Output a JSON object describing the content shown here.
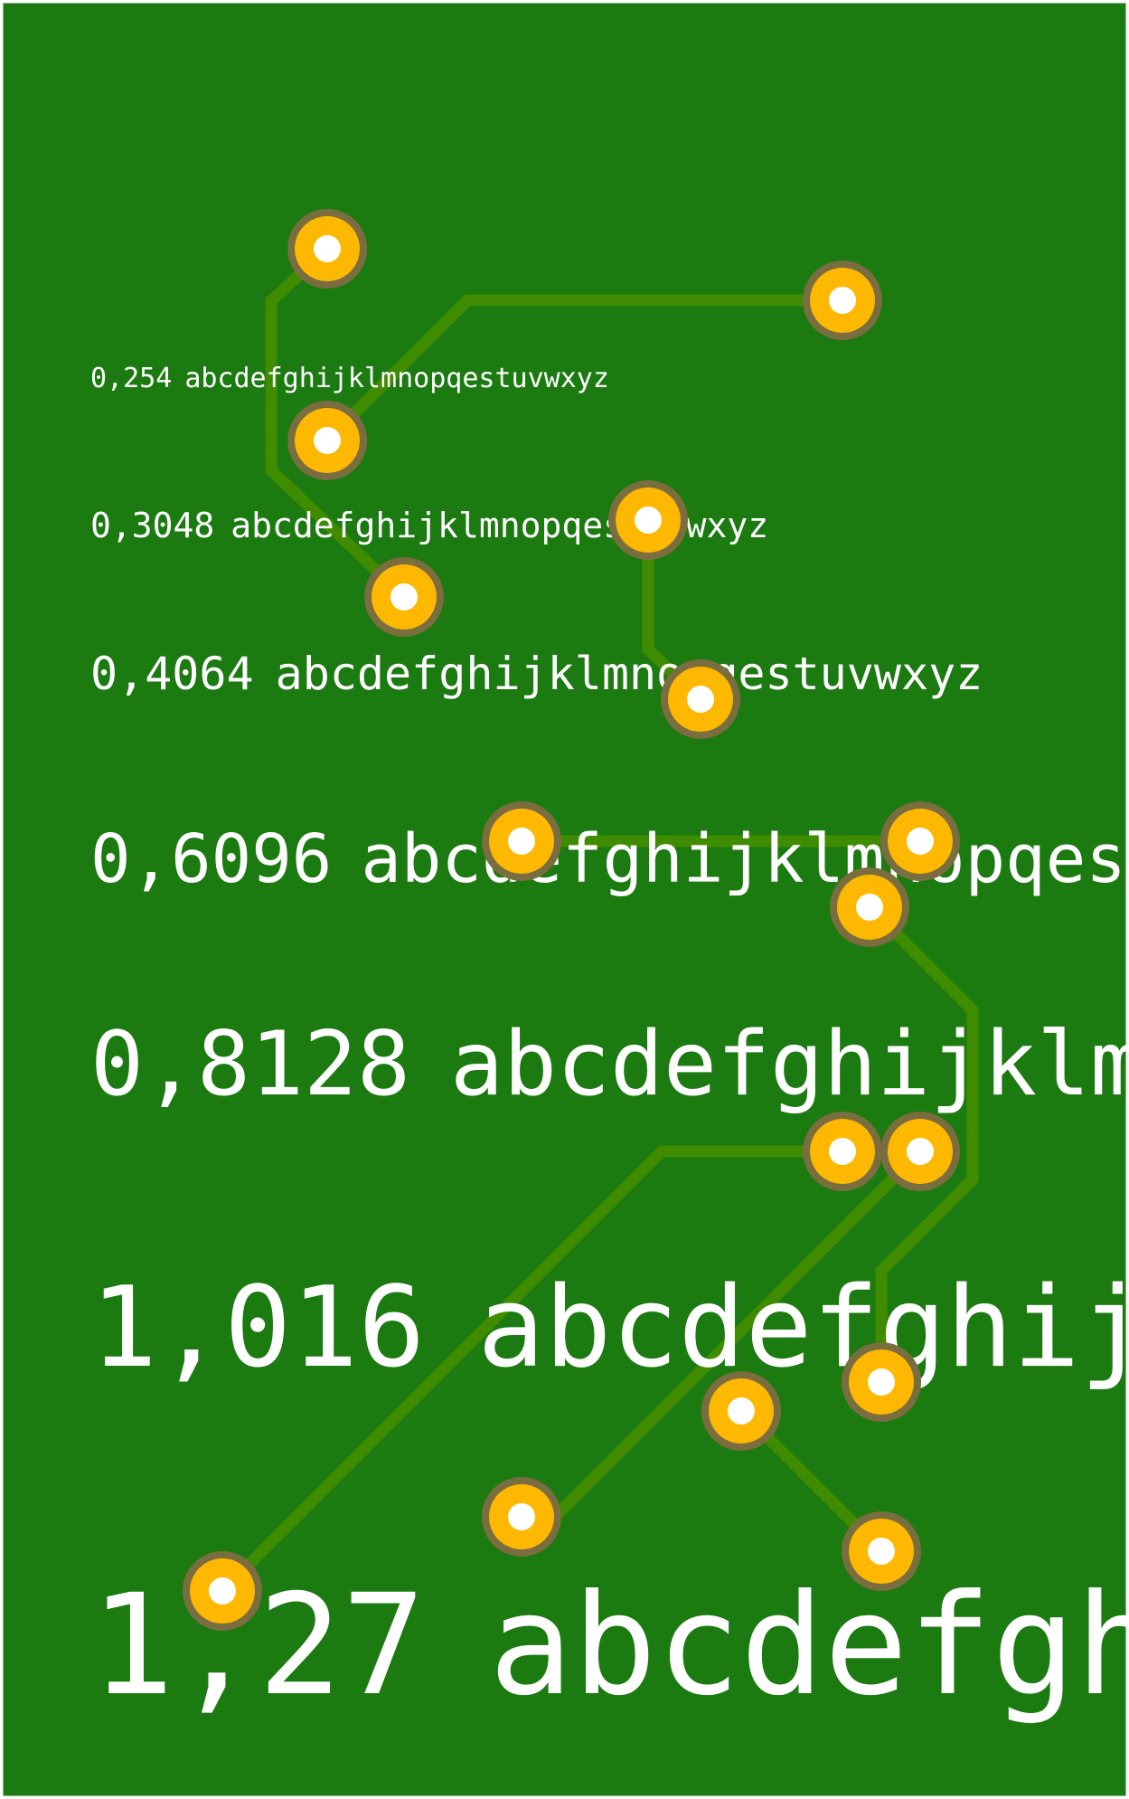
{
  "colors": {
    "board": "#1b7a10",
    "outline": "#ffffff",
    "trace": "#3f8c00",
    "pad_ring": "#7a6d40",
    "pad_copper": "#ffb800",
    "drill": "#ffffff",
    "silkscreen": "#ffffff"
  },
  "silkscreen_lines": [
    {
      "label": "0,254",
      "text": "abcdefghijklmnopqestuvwxyz"
    },
    {
      "label": "0,3048",
      "text": "abcdefghijklmnopqestuvwxyz"
    },
    {
      "label": "0,4064",
      "text": "abcdefghijklmnopqestuvwxyz"
    },
    {
      "label": "0,6096",
      "text": "abcdefghijklmnopqes"
    },
    {
      "label": "0,8128",
      "text": "abcdefghijklm"
    },
    {
      "label": "1,016",
      "text": "abcdefghijk"
    },
    {
      "label": "1,27",
      "text": "abcdefgh"
    }
  ]
}
